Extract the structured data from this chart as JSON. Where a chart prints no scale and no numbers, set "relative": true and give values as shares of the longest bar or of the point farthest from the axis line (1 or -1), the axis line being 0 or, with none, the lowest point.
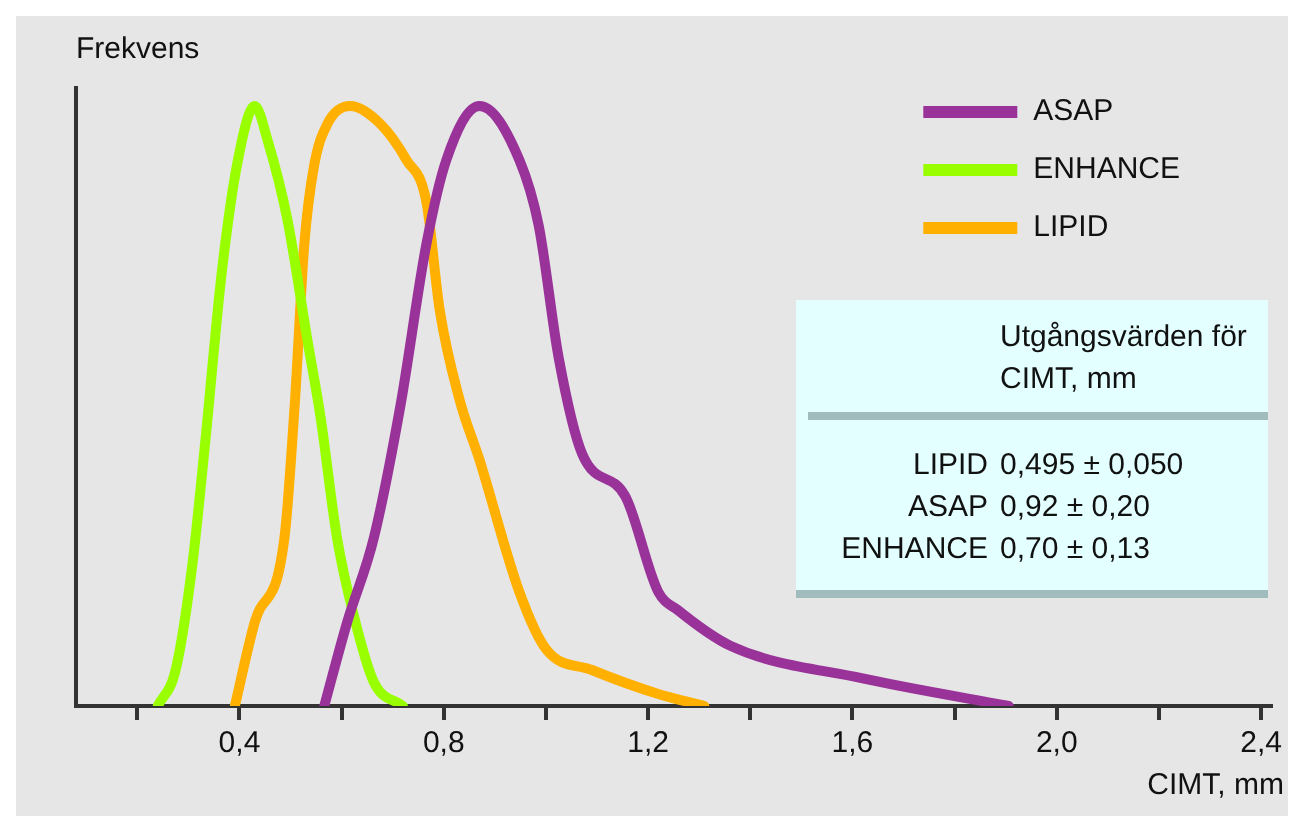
{
  "chart_data": {
    "type": "line",
    "relative": true,
    "xlabel": "CIMT, mm",
    "ylabel": "Frekvens",
    "xlim": [
      0.08,
      2.42
    ],
    "xticks": [
      {
        "value": 0.2,
        "label": null
      },
      {
        "value": 0.4,
        "label": "0,4"
      },
      {
        "value": 0.6,
        "label": null
      },
      {
        "value": 0.8,
        "label": "0,8"
      },
      {
        "value": 1.0,
        "label": null
      },
      {
        "value": 1.2,
        "label": "1,2"
      },
      {
        "value": 1.4,
        "label": null
      },
      {
        "value": 1.6,
        "label": "1,6"
      },
      {
        "value": 1.8,
        "label": null
      },
      {
        "value": 2.0,
        "label": "2,0"
      },
      {
        "value": 2.2,
        "label": null
      },
      {
        "value": 2.4,
        "label": "2,4"
      }
    ],
    "grid": false,
    "legend": "top right",
    "marker": "none",
    "line_style": "solid",
    "series": [
      {
        "name": "ASAP",
        "color": "#993399",
        "x": [
          0.566,
          0.611,
          0.663,
          0.715,
          0.766,
          0.805,
          0.87,
          0.948,
          0.986,
          1.025,
          1.071,
          1.155,
          1.22,
          1.258,
          1.362,
          1.62,
          1.906
        ],
        "values": [
          0,
          0.14,
          0.28,
          0.5,
          0.77,
          0.91,
          1,
          0.91,
          0.8,
          0.58,
          0.42,
          0.35,
          0.19,
          0.16,
          0.1,
          0.046,
          0
        ]
      },
      {
        "name": "ENHANCE",
        "color": "#99ff00",
        "x": [
          0.24,
          0.275,
          0.307,
          0.333,
          0.365,
          0.397,
          0.43,
          0.456,
          0.494,
          0.533,
          0.559,
          0.591,
          0.624,
          0.663,
          0.72
        ],
        "values": [
          0,
          0.06,
          0.23,
          0.44,
          0.72,
          0.91,
          1,
          0.94,
          0.81,
          0.61,
          0.48,
          0.28,
          0.15,
          0.04,
          0
        ]
      },
      {
        "name": "LIPID",
        "color": "#ffb000",
        "x": [
          0.391,
          0.43,
          0.488,
          0.508,
          0.527,
          0.546,
          0.572,
          0.617,
          0.676,
          0.727,
          0.766,
          0.792,
          0.831,
          0.87,
          0.948,
          1.0,
          1.09,
          1.22,
          1.31
        ],
        "values": [
          0,
          0.14,
          0.28,
          0.5,
          0.77,
          0.9,
          0.97,
          1,
          0.97,
          0.91,
          0.84,
          0.66,
          0.51,
          0.41,
          0.19,
          0.095,
          0.06,
          0.02,
          0
        ]
      }
    ],
    "annotations": [
      "Utgångsvärden för CIMT, mm",
      "LIPID 0,495 ± 0,050",
      "ASAP 0,92 ± 0,20",
      "ENHANCE 0,70 ± 0,13"
    ]
  }
}
